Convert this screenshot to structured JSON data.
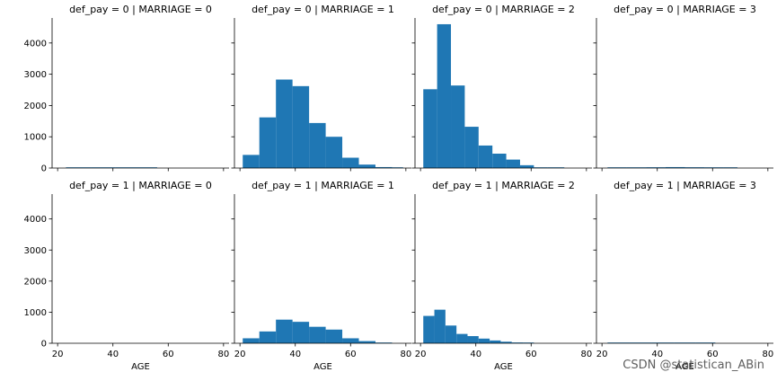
{
  "chart_data": {
    "type": "bar",
    "xlabel": "AGE",
    "ylabel": "",
    "xlim": [
      18,
      82
    ],
    "ylim": [
      0,
      4800
    ],
    "xticks": [
      20,
      40,
      60,
      80
    ],
    "yticks": [
      0,
      1000,
      2000,
      3000,
      4000
    ],
    "bar_color": "#1f77b4",
    "facets": [
      {
        "title": "def_pay = 0 | MARRIAGE = 0",
        "bins": [
          [
            23,
            32,
            8
          ],
          [
            32,
            41,
            12
          ],
          [
            41,
            50,
            12
          ],
          [
            50,
            56,
            8
          ]
        ]
      },
      {
        "title": "def_pay = 0 | MARRIAGE = 1",
        "bins": [
          [
            21,
            27,
            420
          ],
          [
            27,
            33,
            1620
          ],
          [
            33,
            39,
            2830
          ],
          [
            39,
            45,
            2620
          ],
          [
            45,
            51,
            1440
          ],
          [
            51,
            57,
            1000
          ],
          [
            57,
            63,
            330
          ],
          [
            63,
            69,
            110
          ],
          [
            69,
            75,
            30
          ],
          [
            75,
            79,
            5
          ]
        ]
      },
      {
        "title": "def_pay = 0 | MARRIAGE = 2",
        "bins": [
          [
            21,
            26,
            2520
          ],
          [
            26,
            31,
            4600
          ],
          [
            31,
            36,
            2640
          ],
          [
            36,
            41,
            1320
          ],
          [
            41,
            46,
            720
          ],
          [
            46,
            51,
            460
          ],
          [
            51,
            56,
            270
          ],
          [
            56,
            61,
            90
          ],
          [
            61,
            66,
            20
          ],
          [
            66,
            72,
            5
          ]
        ]
      },
      {
        "title": "def_pay = 0 | MARRIAGE = 3",
        "bins": [
          [
            22,
            29,
            15
          ],
          [
            29,
            36,
            20
          ],
          [
            36,
            43,
            25
          ],
          [
            43,
            50,
            30
          ],
          [
            50,
            57,
            25
          ],
          [
            57,
            64,
            15
          ],
          [
            64,
            69,
            5
          ]
        ]
      },
      {
        "title": "def_pay = 1 | MARRIAGE = 0",
        "bins": []
      },
      {
        "title": "def_pay = 1 | MARRIAGE = 1",
        "bins": [
          [
            21,
            27,
            160
          ],
          [
            27,
            33,
            380
          ],
          [
            33,
            39,
            760
          ],
          [
            39,
            45,
            690
          ],
          [
            45,
            51,
            530
          ],
          [
            51,
            57,
            440
          ],
          [
            57,
            63,
            160
          ],
          [
            63,
            69,
            70
          ],
          [
            69,
            75,
            15
          ]
        ]
      },
      {
        "title": "def_pay = 1 | MARRIAGE = 2",
        "bins": [
          [
            21,
            25,
            880
          ],
          [
            25,
            29,
            1080
          ],
          [
            29,
            33,
            570
          ],
          [
            33,
            37,
            300
          ],
          [
            37,
            41,
            230
          ],
          [
            41,
            45,
            150
          ],
          [
            45,
            49,
            90
          ],
          [
            49,
            53,
            50
          ],
          [
            53,
            57,
            25
          ],
          [
            57,
            61,
            8
          ]
        ]
      },
      {
        "title": "def_pay = 1 | MARRIAGE = 3",
        "bins": [
          [
            22,
            30,
            15
          ],
          [
            30,
            38,
            8
          ],
          [
            38,
            46,
            12
          ],
          [
            46,
            54,
            10
          ],
          [
            54,
            61,
            5
          ]
        ]
      }
    ]
  },
  "watermark": "CSDN @statistican_ABin"
}
